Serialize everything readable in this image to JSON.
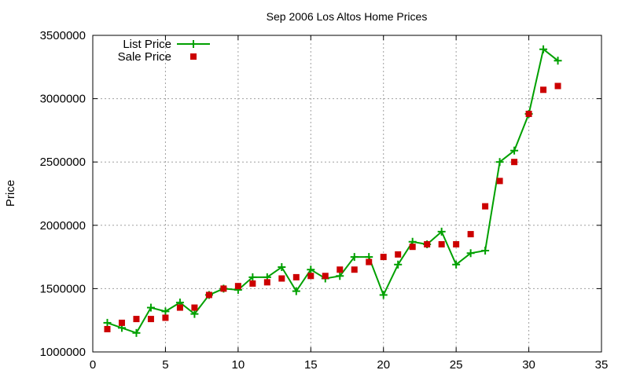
{
  "chart_data": {
    "type": "line",
    "title": "Sep 2006 Los Altos Home Prices",
    "xlabel": "",
    "ylabel": "Price",
    "xlim": [
      0,
      35
    ],
    "ylim": [
      1000000,
      3500000
    ],
    "xticks": [
      0,
      5,
      10,
      15,
      20,
      25,
      30,
      35
    ],
    "yticks": [
      1000000,
      1500000,
      2000000,
      2500000,
      3000000,
      3500000
    ],
    "grid": true,
    "legend_position": "top-left",
    "series": [
      {
        "name": "List Price",
        "style": "line-with-plus-markers",
        "color": "#00a000",
        "x": [
          1,
          2,
          3,
          4,
          5,
          6,
          7,
          8,
          9,
          10,
          11,
          12,
          13,
          14,
          15,
          16,
          17,
          18,
          19,
          20,
          21,
          22,
          23,
          24,
          25,
          26,
          27,
          28,
          29,
          30,
          31,
          32
        ],
        "values": [
          1230000,
          1190000,
          1150000,
          1350000,
          1320000,
          1390000,
          1300000,
          1450000,
          1500000,
          1490000,
          1590000,
          1590000,
          1670000,
          1480000,
          1650000,
          1580000,
          1600000,
          1750000,
          1750000,
          1450000,
          1690000,
          1870000,
          1850000,
          1950000,
          1690000,
          1780000,
          1800000,
          2500000,
          2590000,
          2880000,
          3390000,
          3300000
        ]
      },
      {
        "name": "Sale Price",
        "style": "square-markers",
        "color": "#cc0000",
        "x": [
          1,
          2,
          3,
          4,
          5,
          6,
          7,
          8,
          9,
          10,
          11,
          12,
          13,
          14,
          15,
          16,
          17,
          18,
          19,
          20,
          21,
          22,
          23,
          24,
          25,
          26,
          27,
          28,
          29,
          30,
          31,
          32
        ],
        "values": [
          1180000,
          1230000,
          1260000,
          1260000,
          1270000,
          1350000,
          1350000,
          1450000,
          1500000,
          1520000,
          1540000,
          1550000,
          1580000,
          1590000,
          1600000,
          1600000,
          1650000,
          1650000,
          1710000,
          1750000,
          1770000,
          1830000,
          1850000,
          1850000,
          1850000,
          1930000,
          2150000,
          2350000,
          2500000,
          2880000,
          3070000,
          3100000
        ]
      }
    ]
  }
}
